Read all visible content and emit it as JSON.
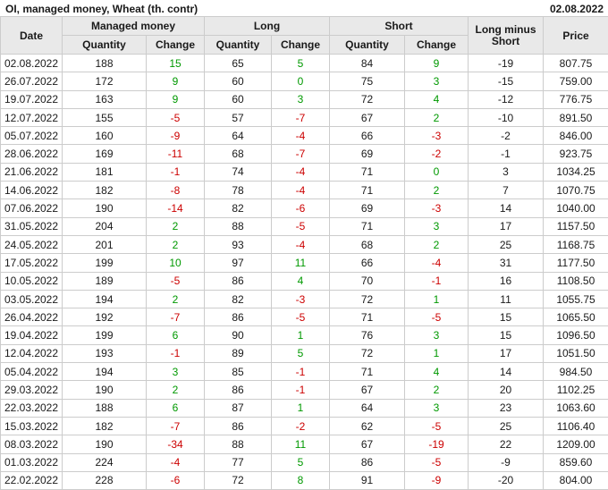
{
  "header": {
    "title": "OI, managed money, Wheat (th. contr)",
    "date": "02.08.2022"
  },
  "colors": {
    "positive": "#009900",
    "negative": "#cc0000",
    "header_bg": "#e9e9e9",
    "border": "#cccccc"
  },
  "table": {
    "columns": {
      "date": "Date",
      "managed_money": "Managed money",
      "long": "Long",
      "short": "Short",
      "quantity": "Quantity",
      "change": "Change",
      "long_minus_short": "Long minus Short",
      "price": "Price"
    },
    "rows": [
      {
        "date": "02.08.2022",
        "mm_qty": "188",
        "mm_chg": "15",
        "long_qty": "65",
        "long_chg": "5",
        "short_qty": "84",
        "short_chg": "9",
        "lms": "-19",
        "price": "807.75"
      },
      {
        "date": "26.07.2022",
        "mm_qty": "172",
        "mm_chg": "9",
        "long_qty": "60",
        "long_chg": "0",
        "short_qty": "75",
        "short_chg": "3",
        "lms": "-15",
        "price": "759.00"
      },
      {
        "date": "19.07.2022",
        "mm_qty": "163",
        "mm_chg": "9",
        "long_qty": "60",
        "long_chg": "3",
        "short_qty": "72",
        "short_chg": "4",
        "lms": "-12",
        "price": "776.75"
      },
      {
        "date": "12.07.2022",
        "mm_qty": "155",
        "mm_chg": "-5",
        "long_qty": "57",
        "long_chg": "-7",
        "short_qty": "67",
        "short_chg": "2",
        "lms": "-10",
        "price": "891.50"
      },
      {
        "date": "05.07.2022",
        "mm_qty": "160",
        "mm_chg": "-9",
        "long_qty": "64",
        "long_chg": "-4",
        "short_qty": "66",
        "short_chg": "-3",
        "lms": "-2",
        "price": "846.00"
      },
      {
        "date": "28.06.2022",
        "mm_qty": "169",
        "mm_chg": "-11",
        "long_qty": "68",
        "long_chg": "-7",
        "short_qty": "69",
        "short_chg": "-2",
        "lms": "-1",
        "price": "923.75"
      },
      {
        "date": "21.06.2022",
        "mm_qty": "181",
        "mm_chg": "-1",
        "long_qty": "74",
        "long_chg": "-4",
        "short_qty": "71",
        "short_chg": "0",
        "lms": "3",
        "price": "1034.25"
      },
      {
        "date": "14.06.2022",
        "mm_qty": "182",
        "mm_chg": "-8",
        "long_qty": "78",
        "long_chg": "-4",
        "short_qty": "71",
        "short_chg": "2",
        "lms": "7",
        "price": "1070.75"
      },
      {
        "date": "07.06.2022",
        "mm_qty": "190",
        "mm_chg": "-14",
        "long_qty": "82",
        "long_chg": "-6",
        "short_qty": "69",
        "short_chg": "-3",
        "lms": "14",
        "price": "1040.00"
      },
      {
        "date": "31.05.2022",
        "mm_qty": "204",
        "mm_chg": "2",
        "long_qty": "88",
        "long_chg": "-5",
        "short_qty": "71",
        "short_chg": "3",
        "lms": "17",
        "price": "1157.50"
      },
      {
        "date": "24.05.2022",
        "mm_qty": "201",
        "mm_chg": "2",
        "long_qty": "93",
        "long_chg": "-4",
        "short_qty": "68",
        "short_chg": "2",
        "lms": "25",
        "price": "1168.75"
      },
      {
        "date": "17.05.2022",
        "mm_qty": "199",
        "mm_chg": "10",
        "long_qty": "97",
        "long_chg": "11",
        "short_qty": "66",
        "short_chg": "-4",
        "lms": "31",
        "price": "1177.50"
      },
      {
        "date": "10.05.2022",
        "mm_qty": "189",
        "mm_chg": "-5",
        "long_qty": "86",
        "long_chg": "4",
        "short_qty": "70",
        "short_chg": "-1",
        "lms": "16",
        "price": "1108.50"
      },
      {
        "date": "03.05.2022",
        "mm_qty": "194",
        "mm_chg": "2",
        "long_qty": "82",
        "long_chg": "-3",
        "short_qty": "72",
        "short_chg": "1",
        "lms": "11",
        "price": "1055.75"
      },
      {
        "date": "26.04.2022",
        "mm_qty": "192",
        "mm_chg": "-7",
        "long_qty": "86",
        "long_chg": "-5",
        "short_qty": "71",
        "short_chg": "-5",
        "lms": "15",
        "price": "1065.50"
      },
      {
        "date": "19.04.2022",
        "mm_qty": "199",
        "mm_chg": "6",
        "long_qty": "90",
        "long_chg": "1",
        "short_qty": "76",
        "short_chg": "3",
        "lms": "15",
        "price": "1096.50"
      },
      {
        "date": "12.04.2022",
        "mm_qty": "193",
        "mm_chg": "-1",
        "long_qty": "89",
        "long_chg": "5",
        "short_qty": "72",
        "short_chg": "1",
        "lms": "17",
        "price": "1051.50"
      },
      {
        "date": "05.04.2022",
        "mm_qty": "194",
        "mm_chg": "3",
        "long_qty": "85",
        "long_chg": "-1",
        "short_qty": "71",
        "short_chg": "4",
        "lms": "14",
        "price": "984.50"
      },
      {
        "date": "29.03.2022",
        "mm_qty": "190",
        "mm_chg": "2",
        "long_qty": "86",
        "long_chg": "-1",
        "short_qty": "67",
        "short_chg": "2",
        "lms": "20",
        "price": "1102.25"
      },
      {
        "date": "22.03.2022",
        "mm_qty": "188",
        "mm_chg": "6",
        "long_qty": "87",
        "long_chg": "1",
        "short_qty": "64",
        "short_chg": "3",
        "lms": "23",
        "price": "1063.60"
      },
      {
        "date": "15.03.2022",
        "mm_qty": "182",
        "mm_chg": "-7",
        "long_qty": "86",
        "long_chg": "-2",
        "short_qty": "62",
        "short_chg": "-5",
        "lms": "25",
        "price": "1106.40"
      },
      {
        "date": "08.03.2022",
        "mm_qty": "190",
        "mm_chg": "-34",
        "long_qty": "88",
        "long_chg": "11",
        "short_qty": "67",
        "short_chg": "-19",
        "lms": "22",
        "price": "1209.00"
      },
      {
        "date": "01.03.2022",
        "mm_qty": "224",
        "mm_chg": "-4",
        "long_qty": "77",
        "long_chg": "5",
        "short_qty": "86",
        "short_chg": "-5",
        "lms": "-9",
        "price": "859.60"
      },
      {
        "date": "22.02.2022",
        "mm_qty": "228",
        "mm_chg": "-6",
        "long_qty": "72",
        "long_chg": "8",
        "short_qty": "91",
        "short_chg": "-9",
        "lms": "-20",
        "price": "804.00"
      }
    ]
  }
}
